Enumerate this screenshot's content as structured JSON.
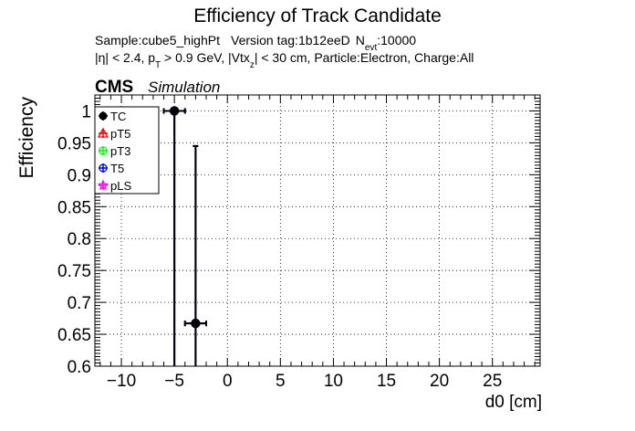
{
  "chart_data": {
    "type": "scatter",
    "title": "Efficiency of Track Candidate",
    "subtitle_line1": {
      "sample": "Sample:cube5_highPt",
      "version": "Version tag:1b12eeD",
      "nevt_prefix": "N",
      "nevt_sub": "evt",
      "nevt_value": ":10000"
    },
    "subtitle_line2": {
      "eta": "|η| < 2.4, p",
      "pt_sub": "T",
      "pt_cut": " > 0.9 GeV, |Vtx",
      "vtx_sub": "z",
      "rest": "| < 30 cm, Particle:Electron, Charge:All"
    },
    "cms_label": "CMS",
    "simulation_label": "Simulation",
    "xlabel": "d0 [cm]",
    "ylabel": "Efficiency",
    "xlim": [
      -12.5,
      29.5
    ],
    "ylim": [
      0.6,
      1.025
    ],
    "xticks": [
      -10,
      -5,
      0,
      5,
      10,
      15,
      20,
      25
    ],
    "xtick_labels": [
      "−10",
      "−5",
      "0",
      "5",
      "10",
      "15",
      "20",
      "25"
    ],
    "yticks": [
      0.6,
      0.65,
      0.7,
      0.75,
      0.8,
      0.85,
      0.9,
      0.95,
      1.0
    ],
    "ytick_labels": [
      "0.6",
      "0.65",
      "0.7",
      "0.75",
      "0.8",
      "0.85",
      "0.9",
      "0.95",
      "1"
    ],
    "grid": true,
    "legend_position": "top-left",
    "series": [
      {
        "name": "TC",
        "color": "#000000",
        "marker": "circle-filled",
        "points": [
          {
            "x": -5,
            "y": 1.0,
            "xerr": 1,
            "yerr_low": 0.4,
            "yerr_high": 0.0
          },
          {
            "x": -3,
            "y": 0.667,
            "xerr": 1,
            "yerr_low": 0.07,
            "yerr_high": 0.278
          }
        ]
      },
      {
        "name": "pT5",
        "color": "#ff0000",
        "marker": "triangle-open",
        "points": []
      },
      {
        "name": "pT3",
        "color": "#00ff00",
        "marker": "circle-open",
        "points": []
      },
      {
        "name": "T5",
        "color": "#0000ff",
        "marker": "circle-open",
        "points": [
          {
            "x": -5,
            "y": 1.0,
            "xerr": 1,
            "yerr_low": 0.4,
            "yerr_high": 0.0
          },
          {
            "x": -3,
            "y": 0.667,
            "xerr": 1,
            "yerr_low": 0.07,
            "yerr_high": 0.278
          }
        ]
      },
      {
        "name": "pLS",
        "color": "#ff00ff",
        "marker": "star-open",
        "points": []
      }
    ]
  }
}
